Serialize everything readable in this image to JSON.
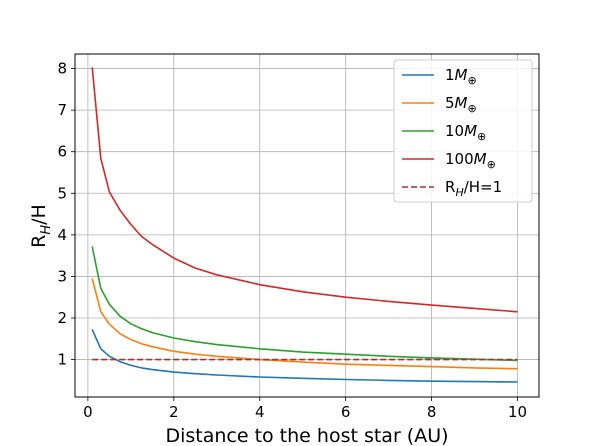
{
  "chart_data": {
    "type": "line",
    "xlabel": "Distance to the host star (AU)",
    "ylabel_base": "R",
    "ylabel_sub": "H",
    "ylabel_tail": "/H",
    "xlim": [
      -0.3,
      10.5
    ],
    "ylim": [
      0.1,
      8.35
    ],
    "xticks": [
      0,
      2,
      4,
      6,
      8,
      10
    ],
    "yticks": [
      1,
      2,
      3,
      4,
      5,
      6,
      7,
      8
    ],
    "grid": true,
    "legend_position": "top-right",
    "x": [
      0.1,
      0.3,
      0.5,
      0.75,
      1.0,
      1.25,
      1.5,
      2.0,
      2.5,
      3.0,
      4.0,
      5.0,
      6.0,
      7.0,
      8.0,
      9.0,
      10.0
    ],
    "series": [
      {
        "name_base": "1",
        "name_var": "M",
        "name_sub": "⊕",
        "color": "#1f77b4",
        "style": "solid",
        "values": [
          1.72,
          1.26,
          1.08,
          0.95,
          0.86,
          0.8,
          0.76,
          0.7,
          0.66,
          0.63,
          0.58,
          0.55,
          0.52,
          0.5,
          0.48,
          0.47,
          0.46
        ]
      },
      {
        "name_base": "5",
        "name_var": "M",
        "name_sub": "⊕",
        "color": "#ff7f0e",
        "style": "solid",
        "values": [
          2.95,
          2.15,
          1.85,
          1.62,
          1.48,
          1.38,
          1.31,
          1.2,
          1.13,
          1.08,
          1.0,
          0.94,
          0.89,
          0.86,
          0.83,
          0.8,
          0.78
        ]
      },
      {
        "name_base": "10",
        "name_var": "M",
        "name_sub": "⊕",
        "color": "#2ca02c",
        "style": "solid",
        "values": [
          3.72,
          2.71,
          2.33,
          2.04,
          1.86,
          1.74,
          1.65,
          1.52,
          1.43,
          1.36,
          1.26,
          1.18,
          1.13,
          1.08,
          1.04,
          1.01,
          0.98
        ]
      },
      {
        "name_base": "100",
        "name_var": "M",
        "name_sub": "⊕",
        "color": "#d62728",
        "style": "solid",
        "values": [
          8.03,
          5.84,
          5.03,
          4.59,
          4.25,
          3.96,
          3.77,
          3.44,
          3.2,
          3.04,
          2.8,
          2.63,
          2.5,
          2.4,
          2.31,
          2.23,
          2.15
        ]
      }
    ],
    "reference_line": {
      "name_base": "R",
      "name_sub": "H",
      "name_tail": "/H=1",
      "color": "#b22c2c",
      "style": "dashed",
      "y": 1,
      "x_range": [
        0.1,
        10
      ]
    }
  }
}
